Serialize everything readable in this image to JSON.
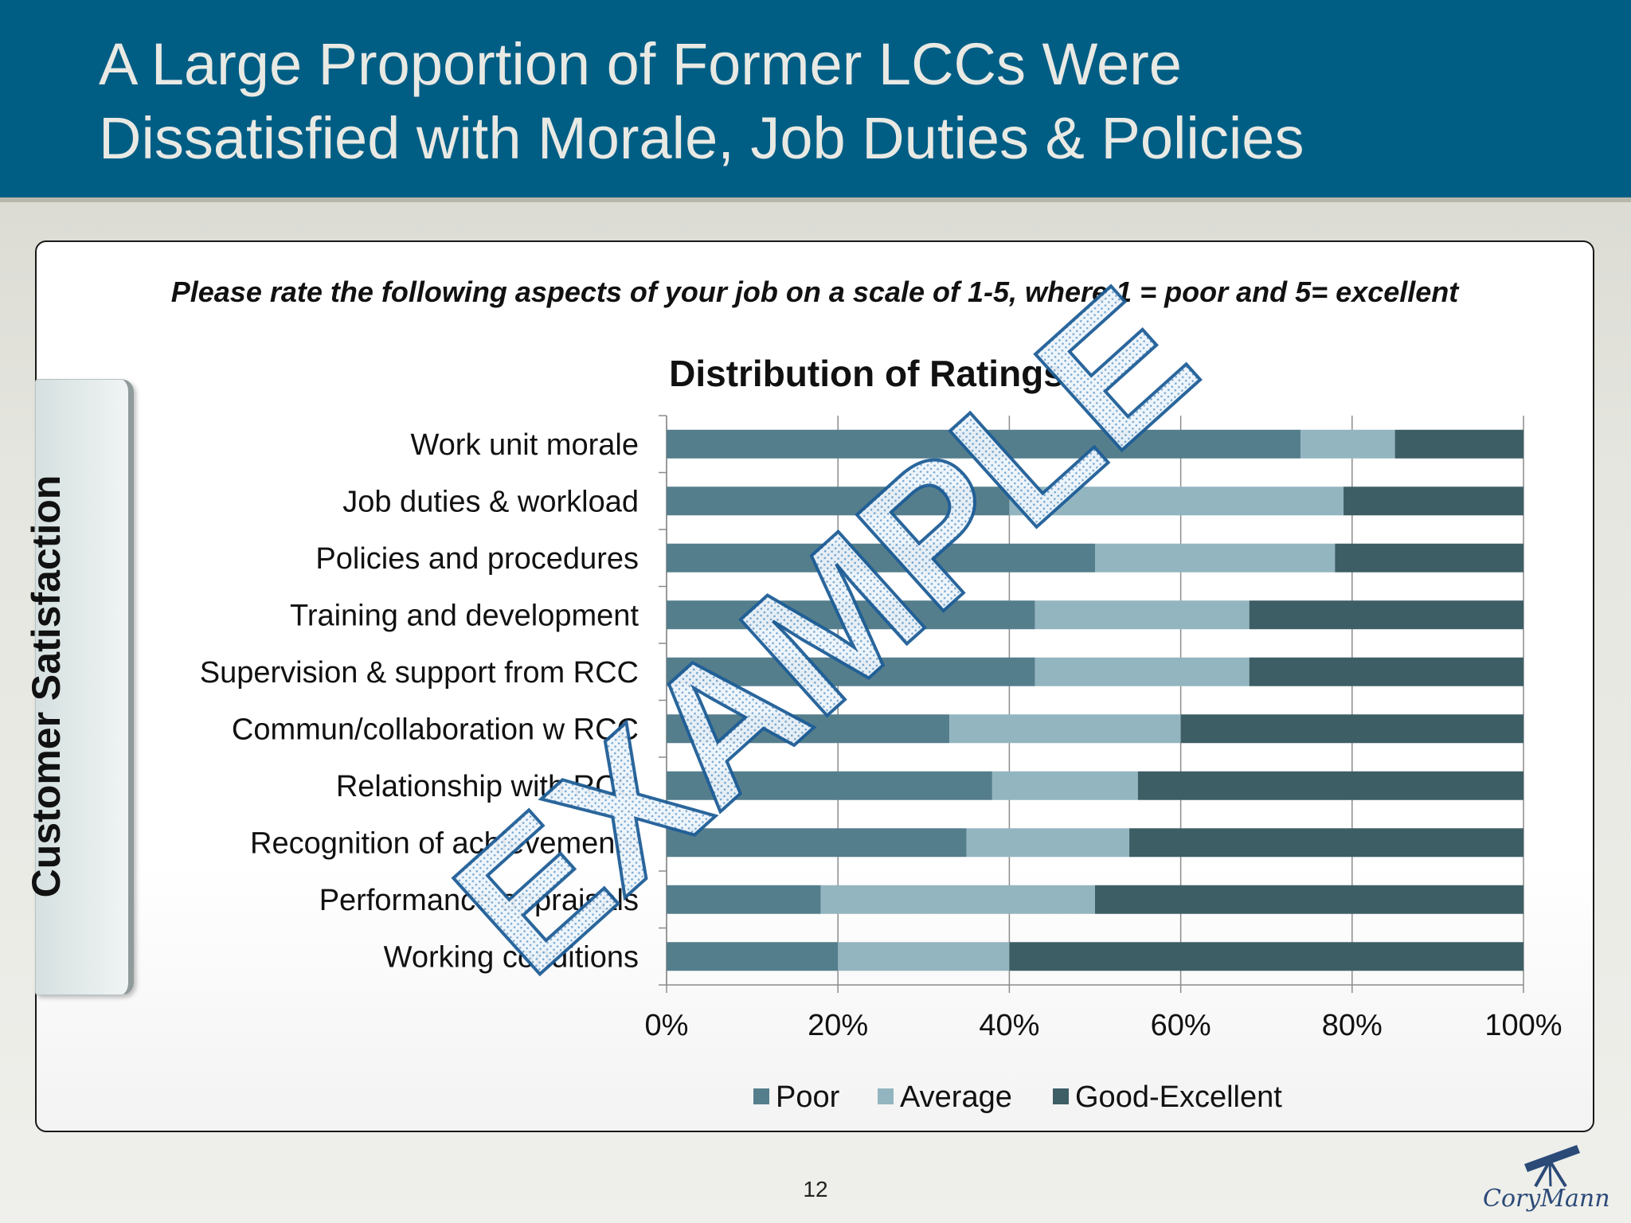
{
  "slide": {
    "title": "A Large Proportion of Former LCCs Were\nDissatisfied with Morale, Job Duties & Policies",
    "question": "Please rate the following aspects of your job on a scale of 1-5, where 1 = poor and 5= excellent",
    "side_label": "Customer Satisfaction",
    "page_number": "12",
    "logo_text": "CoryMann",
    "watermark": "EXAMPLE"
  },
  "colors": {
    "header": "#005e85",
    "poor": "#557e8c",
    "average": "#93b5c0",
    "good": "#3e5e66"
  },
  "chart_data": {
    "type": "bar",
    "orientation": "horizontal",
    "stacked": "percent",
    "title": "Distribution of Ratings",
    "categories": [
      "Work unit morale",
      "Job duties & workload",
      "Policies and procedures",
      "Training and development",
      "Supervision & support from RCC",
      "Commun/collaboration w RCC",
      "Relationship with RCC",
      "Recognition of achievements",
      "Performance appraisals",
      "Working conditions"
    ],
    "series": [
      {
        "name": "Poor",
        "values": [
          74,
          40,
          50,
          43,
          43,
          33,
          38,
          35,
          18,
          20
        ]
      },
      {
        "name": "Average",
        "values": [
          11,
          39,
          28,
          25,
          25,
          27,
          17,
          19,
          32,
          20
        ]
      },
      {
        "name": "Good-Excellent",
        "values": [
          15,
          21,
          22,
          32,
          32,
          40,
          45,
          46,
          50,
          60
        ]
      }
    ],
    "x_ticks": [
      "0%",
      "20%",
      "40%",
      "60%",
      "80%",
      "100%"
    ],
    "xlim": [
      0,
      100
    ],
    "grid": true,
    "legend": "bottom"
  }
}
